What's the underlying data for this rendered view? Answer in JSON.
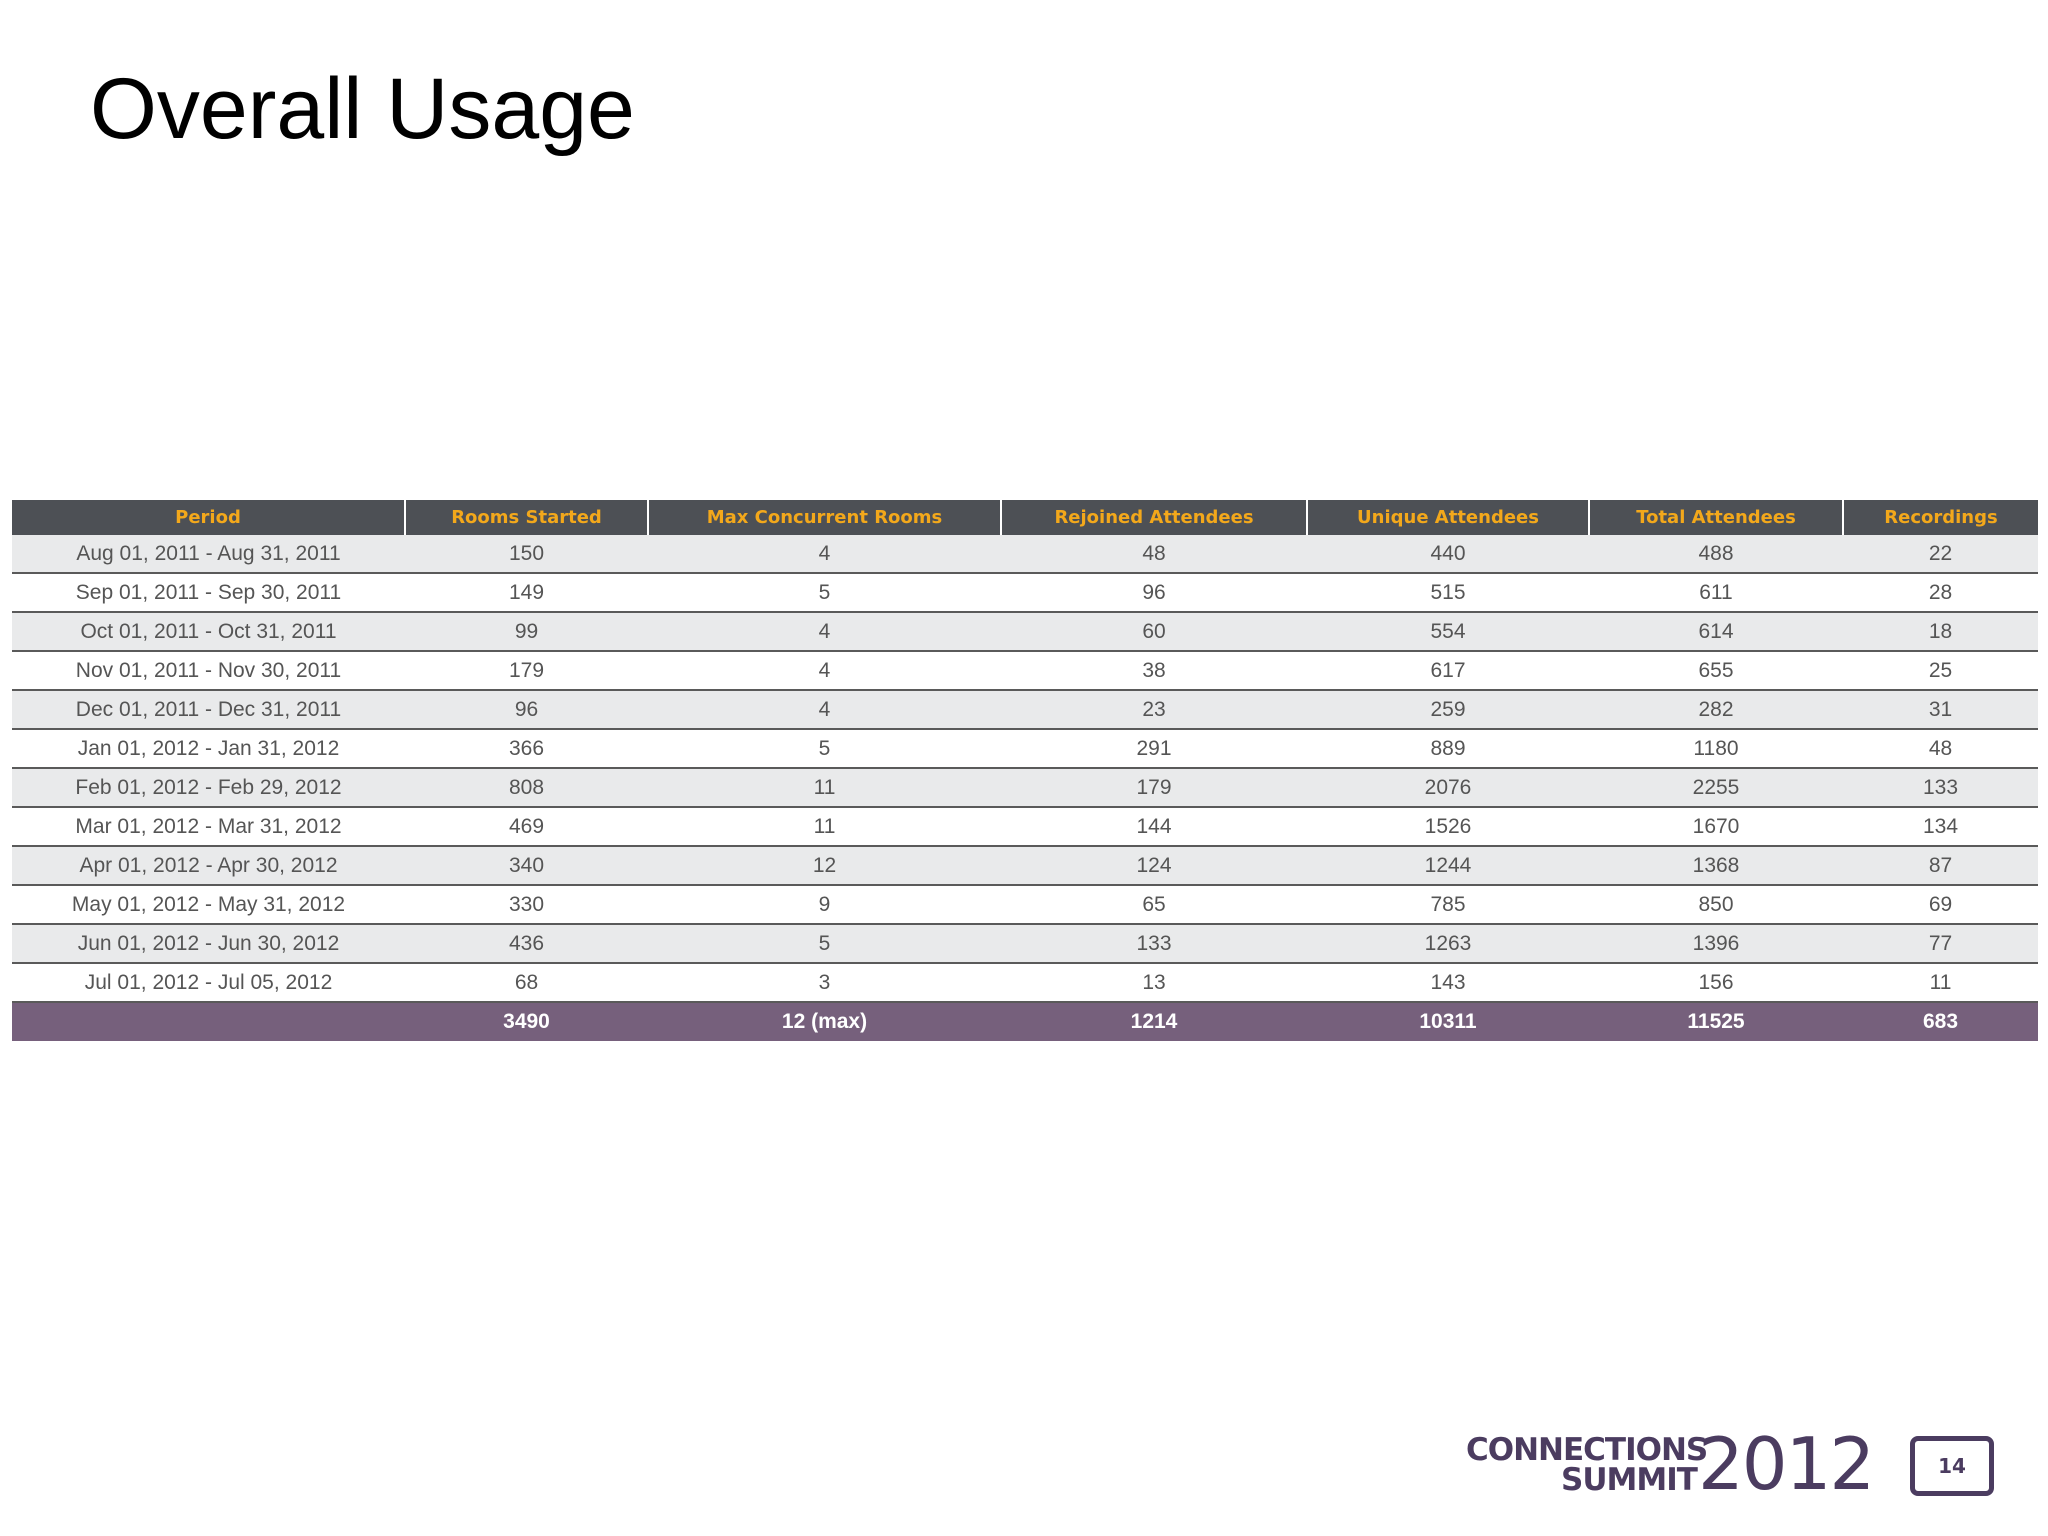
{
  "slide": {
    "title": "Overall Usage",
    "page_number": "14"
  },
  "logo": {
    "line1": "CONNECTIONS",
    "line2": "SUMMIT",
    "year": "2012"
  },
  "colors": {
    "header_bg": "#4d5055",
    "header_text": "#f3a81b",
    "row_alt": "#e9eaeb",
    "totals_bg": "#76607c",
    "brand": "#4b3c60"
  },
  "table": {
    "headers": [
      "Period",
      "Rooms Started",
      "Max Concurrent Rooms",
      "Rejoined Attendees",
      "Unique Attendees",
      "Total Attendees",
      "Recordings"
    ],
    "rows": [
      [
        "Aug 01, 2011 - Aug 31, 2011",
        "150",
        "4",
        "48",
        "440",
        "488",
        "22"
      ],
      [
        "Sep 01, 2011 - Sep 30, 2011",
        "149",
        "5",
        "96",
        "515",
        "611",
        "28"
      ],
      [
        "Oct 01, 2011 - Oct 31, 2011",
        "99",
        "4",
        "60",
        "554",
        "614",
        "18"
      ],
      [
        "Nov 01, 2011 - Nov 30, 2011",
        "179",
        "4",
        "38",
        "617",
        "655",
        "25"
      ],
      [
        "Dec 01, 2011 - Dec 31, 2011",
        "96",
        "4",
        "23",
        "259",
        "282",
        "31"
      ],
      [
        "Jan 01, 2012 - Jan 31, 2012",
        "366",
        "5",
        "291",
        "889",
        "1180",
        "48"
      ],
      [
        "Feb 01, 2012 - Feb 29, 2012",
        "808",
        "11",
        "179",
        "2076",
        "2255",
        "133"
      ],
      [
        "Mar 01, 2012 - Mar 31, 2012",
        "469",
        "11",
        "144",
        "1526",
        "1670",
        "134"
      ],
      [
        "Apr 01, 2012 - Apr 30, 2012",
        "340",
        "12",
        "124",
        "1244",
        "1368",
        "87"
      ],
      [
        "May 01, 2012 - May 31, 2012",
        "330",
        "9",
        "65",
        "785",
        "850",
        "69"
      ],
      [
        "Jun 01, 2012 - Jun 30, 2012",
        "436",
        "5",
        "133",
        "1263",
        "1396",
        "77"
      ],
      [
        "Jul 01, 2012 - Jul 05, 2012",
        "68",
        "3",
        "13",
        "143",
        "156",
        "11"
      ]
    ],
    "totals": [
      "",
      "3490",
      "12 (max)",
      "1214",
      "10311",
      "11525",
      "683"
    ]
  }
}
